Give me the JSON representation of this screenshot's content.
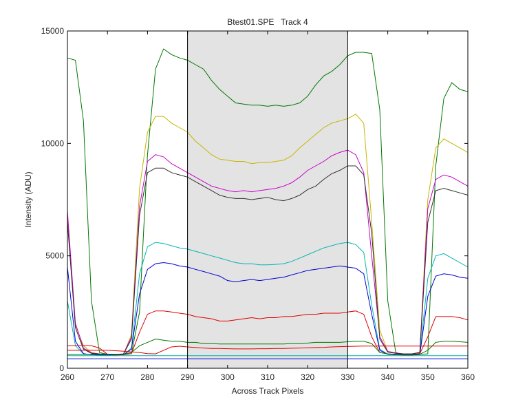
{
  "chart_data": {
    "type": "line",
    "title": "Btest01.SPE   Track 4",
    "xlabel": "Across Track Pixels",
    "ylabel": "Intensity (ADU)",
    "xlim": [
      260,
      360
    ],
    "ylim": [
      0,
      15000
    ],
    "xticks": [
      260,
      270,
      280,
      290,
      300,
      310,
      320,
      330,
      340,
      350,
      360
    ],
    "yticks": [
      0,
      5000,
      10000,
      15000
    ],
    "ytick_labels": [
      "0",
      "5000",
      "10000",
      "15000"
    ],
    "grid": false,
    "legend": "none",
    "highlight_band": {
      "x_start": 290,
      "x_end": 330,
      "color": "#e3e3e3"
    },
    "series": [
      {
        "color": "#007700",
        "x": [
          260,
          262,
          264,
          266,
          268,
          270,
          272,
          274,
          276,
          278,
          280,
          282,
          284,
          286,
          288,
          290,
          292,
          294,
          296,
          298,
          300,
          302,
          304,
          306,
          308,
          310,
          312,
          314,
          316,
          318,
          320,
          322,
          324,
          326,
          328,
          330,
          332,
          334,
          336,
          338,
          340,
          342,
          344,
          346,
          348,
          350,
          352,
          354,
          356,
          358,
          360
        ],
        "values": [
          13800,
          13700,
          11000,
          3000,
          700,
          620,
          620,
          620,
          650,
          2500,
          9500,
          13300,
          14200,
          13950,
          13800,
          13700,
          13500,
          13300,
          12800,
          12400,
          12100,
          11800,
          11750,
          11700,
          11700,
          11650,
          11700,
          11650,
          11700,
          11800,
          12100,
          12600,
          13000,
          13200,
          13500,
          13900,
          14050,
          14050,
          14000,
          11500,
          3000,
          700,
          600,
          620,
          620,
          640,
          9000,
          12000,
          12700,
          12400,
          12300
        ]
      },
      {
        "color": "#c8b400",
        "x": [
          260,
          262,
          264,
          266,
          268,
          270,
          272,
          274,
          276,
          278,
          280,
          282,
          284,
          286,
          288,
          290,
          292,
          294,
          296,
          298,
          300,
          302,
          304,
          306,
          308,
          310,
          312,
          314,
          316,
          318,
          320,
          322,
          324,
          326,
          328,
          330,
          332,
          334,
          336,
          338,
          340,
          342,
          344,
          346,
          348,
          350,
          352,
          354,
          356,
          358,
          360
        ],
        "values": [
          6800,
          1900,
          1000,
          700,
          640,
          620,
          620,
          620,
          1500,
          8000,
          10500,
          11200,
          11200,
          10900,
          10700,
          10500,
          10100,
          9800,
          9500,
          9300,
          9250,
          9200,
          9200,
          9100,
          9150,
          9150,
          9200,
          9250,
          9450,
          9800,
          10100,
          10400,
          10700,
          10900,
          11000,
          11100,
          11300,
          10900,
          6500,
          1700,
          750,
          680,
          640,
          640,
          720,
          7500,
          9800,
          10200,
          10000,
          9800,
          9600
        ]
      },
      {
        "color": "#c800c8",
        "x": [
          260,
          262,
          264,
          266,
          268,
          270,
          272,
          274,
          276,
          278,
          280,
          282,
          284,
          286,
          288,
          290,
          292,
          294,
          296,
          298,
          300,
          302,
          304,
          306,
          308,
          310,
          312,
          314,
          316,
          318,
          320,
          322,
          324,
          326,
          328,
          330,
          332,
          334,
          336,
          338,
          340,
          342,
          344,
          346,
          348,
          350,
          352,
          354,
          356,
          358,
          360
        ],
        "values": [
          7000,
          2000,
          900,
          680,
          640,
          620,
          620,
          640,
          1400,
          7200,
          9200,
          9500,
          9400,
          9100,
          8900,
          8700,
          8500,
          8300,
          8100,
          8000,
          7900,
          7850,
          7900,
          7850,
          7900,
          7950,
          8000,
          8100,
          8250,
          8500,
          8800,
          9000,
          9200,
          9450,
          9600,
          9700,
          9500,
          8700,
          5000,
          1400,
          750,
          680,
          640,
          640,
          700,
          7100,
          8400,
          8600,
          8500,
          8300,
          8100
        ]
      },
      {
        "color": "#303030",
        "x": [
          260,
          262,
          264,
          266,
          268,
          270,
          272,
          274,
          276,
          278,
          280,
          282,
          284,
          286,
          288,
          290,
          292,
          294,
          296,
          298,
          300,
          302,
          304,
          306,
          308,
          310,
          312,
          314,
          316,
          318,
          320,
          322,
          324,
          326,
          328,
          330,
          332,
          334,
          336,
          338,
          340,
          342,
          344,
          346,
          348,
          350,
          352,
          354,
          356,
          358,
          360
        ],
        "values": [
          6500,
          1800,
          850,
          660,
          630,
          620,
          620,
          630,
          1300,
          6800,
          8700,
          8900,
          8900,
          8700,
          8600,
          8500,
          8300,
          8100,
          7900,
          7700,
          7600,
          7550,
          7550,
          7500,
          7550,
          7600,
          7500,
          7450,
          7550,
          7700,
          7950,
          8100,
          8400,
          8650,
          8800,
          9000,
          9000,
          8600,
          6000,
          1300,
          720,
          660,
          640,
          640,
          690,
          6500,
          7900,
          8000,
          7900,
          7800,
          7700
        ]
      },
      {
        "color": "#00b4b4",
        "x": [
          260,
          262,
          264,
          266,
          268,
          270,
          272,
          274,
          276,
          278,
          280,
          282,
          284,
          286,
          288,
          290,
          292,
          294,
          296,
          298,
          300,
          302,
          304,
          306,
          308,
          310,
          312,
          314,
          316,
          318,
          320,
          322,
          324,
          326,
          328,
          330,
          332,
          334,
          336,
          338,
          340,
          342,
          344,
          346,
          348,
          350,
          352,
          354,
          356,
          358,
          360
        ],
        "values": [
          3000,
          1000,
          640,
          600,
          590,
          590,
          590,
          600,
          900,
          4200,
          5400,
          5600,
          5550,
          5450,
          5350,
          5300,
          5200,
          5100,
          5000,
          4900,
          4800,
          4700,
          4650,
          4650,
          4600,
          4600,
          4620,
          4650,
          4750,
          4900,
          5050,
          5200,
          5350,
          5450,
          5550,
          5600,
          5500,
          5150,
          2800,
          850,
          620,
          600,
          590,
          590,
          620,
          4000,
          5000,
          5100,
          4900,
          4700,
          4500
        ]
      },
      {
        "color": "#0000d0",
        "x": [
          260,
          262,
          264,
          266,
          268,
          270,
          272,
          274,
          276,
          278,
          280,
          282,
          284,
          286,
          288,
          290,
          292,
          294,
          296,
          298,
          300,
          302,
          304,
          306,
          308,
          310,
          312,
          314,
          316,
          318,
          320,
          322,
          324,
          326,
          328,
          330,
          332,
          334,
          336,
          338,
          340,
          342,
          344,
          346,
          348,
          350,
          352,
          354,
          356,
          358,
          360
        ],
        "values": [
          4500,
          1200,
          650,
          600,
          590,
          590,
          590,
          600,
          850,
          3300,
          4400,
          4650,
          4700,
          4650,
          4550,
          4500,
          4400,
          4300,
          4200,
          4100,
          3900,
          3850,
          3900,
          3950,
          3900,
          3950,
          4000,
          4050,
          4150,
          4250,
          4350,
          4400,
          4450,
          4500,
          4550,
          4500,
          4450,
          4200,
          2400,
          800,
          620,
          600,
          590,
          590,
          610,
          3200,
          4100,
          4200,
          4150,
          4050,
          4000
        ]
      },
      {
        "color": "#dd0000",
        "x": [
          260,
          262,
          264,
          266,
          268,
          270,
          272,
          274,
          276,
          278,
          280,
          282,
          284,
          286,
          288,
          290,
          292,
          294,
          296,
          298,
          300,
          302,
          304,
          306,
          308,
          310,
          312,
          314,
          316,
          318,
          320,
          322,
          324,
          326,
          328,
          330,
          332,
          334,
          336,
          338,
          340,
          342,
          344,
          346,
          348,
          350,
          352,
          354,
          356,
          358,
          360
        ],
        "values": [
          1000,
          1000,
          1000,
          1000,
          900,
          620,
          600,
          600,
          650,
          1600,
          2400,
          2550,
          2550,
          2500,
          2450,
          2400,
          2300,
          2250,
          2200,
          2100,
          2100,
          2150,
          2200,
          2250,
          2200,
          2250,
          2250,
          2300,
          2300,
          2350,
          2400,
          2400,
          2450,
          2450,
          2450,
          2500,
          2550,
          2400,
          1400,
          700,
          640,
          620,
          600,
          600,
          650,
          1400,
          2300,
          2300,
          2300,
          2250,
          2150
        ]
      },
      {
        "color": "#007700",
        "x": [
          260,
          262,
          264,
          266,
          268,
          270,
          272,
          274,
          276,
          278,
          280,
          282,
          284,
          286,
          288,
          290,
          292,
          294,
          296,
          298,
          300,
          302,
          304,
          306,
          308,
          310,
          312,
          314,
          316,
          318,
          320,
          322,
          324,
          326,
          328,
          330,
          332,
          334,
          336,
          338,
          340,
          342,
          344,
          346,
          348,
          350,
          352,
          354,
          356,
          358,
          360
        ],
        "values": [
          620,
          620,
          620,
          620,
          620,
          620,
          620,
          620,
          700,
          1000,
          1150,
          1300,
          1250,
          1200,
          1200,
          1150,
          1150,
          1100,
          1100,
          1080,
          1080,
          1080,
          1080,
          1080,
          1080,
          1080,
          1080,
          1080,
          1100,
          1100,
          1120,
          1150,
          1150,
          1150,
          1150,
          1180,
          1200,
          1200,
          1100,
          700,
          640,
          620,
          620,
          620,
          620,
          800,
          1150,
          1200,
          1200,
          1180,
          1150
        ]
      },
      {
        "color": "#dd0000",
        "x": [
          260,
          262,
          264,
          266,
          268,
          270,
          272,
          274,
          276,
          278,
          280,
          282,
          284,
          286,
          288,
          290,
          292,
          294,
          296,
          298,
          300,
          302,
          304,
          306,
          308,
          310,
          312,
          314,
          316,
          318,
          320,
          322,
          324,
          326,
          328,
          330,
          332,
          334,
          336,
          338,
          340,
          342,
          344,
          346,
          348,
          350,
          352,
          354,
          356,
          358,
          360
        ],
        "values": [
          800,
          800,
          800,
          800,
          800,
          800,
          780,
          760,
          730,
          700,
          650,
          640,
          800,
          950,
          980,
          950,
          920,
          900,
          880,
          880,
          870,
          860,
          860,
          860,
          870,
          870,
          880,
          880,
          890,
          900,
          910,
          920,
          930,
          950,
          960,
          970,
          980,
          990,
          990,
          990,
          990,
          990,
          990,
          990,
          990,
          990,
          990,
          990,
          990,
          990,
          990
        ]
      },
      {
        "color": "#00b4b4",
        "x": [
          260,
          262,
          264,
          266,
          268,
          270,
          272,
          274,
          276,
          278,
          280,
          282,
          284,
          286,
          288,
          290,
          292,
          294,
          296,
          298,
          300,
          302,
          304,
          306,
          308,
          310,
          312,
          314,
          316,
          318,
          320,
          322,
          324,
          326,
          328,
          330,
          332,
          334,
          336,
          338,
          340,
          342,
          344,
          346,
          348,
          350,
          352,
          354,
          356,
          358,
          360
        ],
        "values": [
          560,
          560,
          560,
          560,
          560,
          560,
          560,
          560,
          560,
          560,
          560,
          560,
          560,
          560,
          560,
          560,
          560,
          560,
          560,
          560,
          560,
          560,
          560,
          560,
          560,
          560,
          560,
          560,
          560,
          560,
          560,
          560,
          560,
          560,
          560,
          560,
          560,
          560,
          560,
          560,
          560,
          560,
          560,
          560,
          560,
          560,
          560,
          560,
          560,
          560,
          560
        ]
      },
      {
        "color": "#0000d0",
        "x": [
          260,
          262,
          264,
          266,
          268,
          270,
          272,
          274,
          276,
          278,
          280,
          282,
          284,
          286,
          288,
          290,
          292,
          294,
          296,
          298,
          300,
          302,
          304,
          306,
          308,
          310,
          312,
          314,
          316,
          318,
          320,
          322,
          324,
          326,
          328,
          330,
          332,
          334,
          336,
          338,
          340,
          342,
          344,
          346,
          348,
          350,
          352,
          354,
          356,
          358,
          360
        ],
        "values": [
          420,
          420,
          420,
          420,
          420,
          420,
          420,
          420,
          420,
          420,
          420,
          420,
          420,
          420,
          420,
          420,
          420,
          420,
          420,
          420,
          420,
          420,
          420,
          420,
          420,
          420,
          420,
          420,
          420,
          420,
          420,
          420,
          420,
          420,
          420,
          420,
          420,
          420,
          420,
          420,
          420,
          420,
          420,
          420,
          420,
          420,
          420,
          420,
          420,
          420,
          420
        ]
      }
    ]
  }
}
